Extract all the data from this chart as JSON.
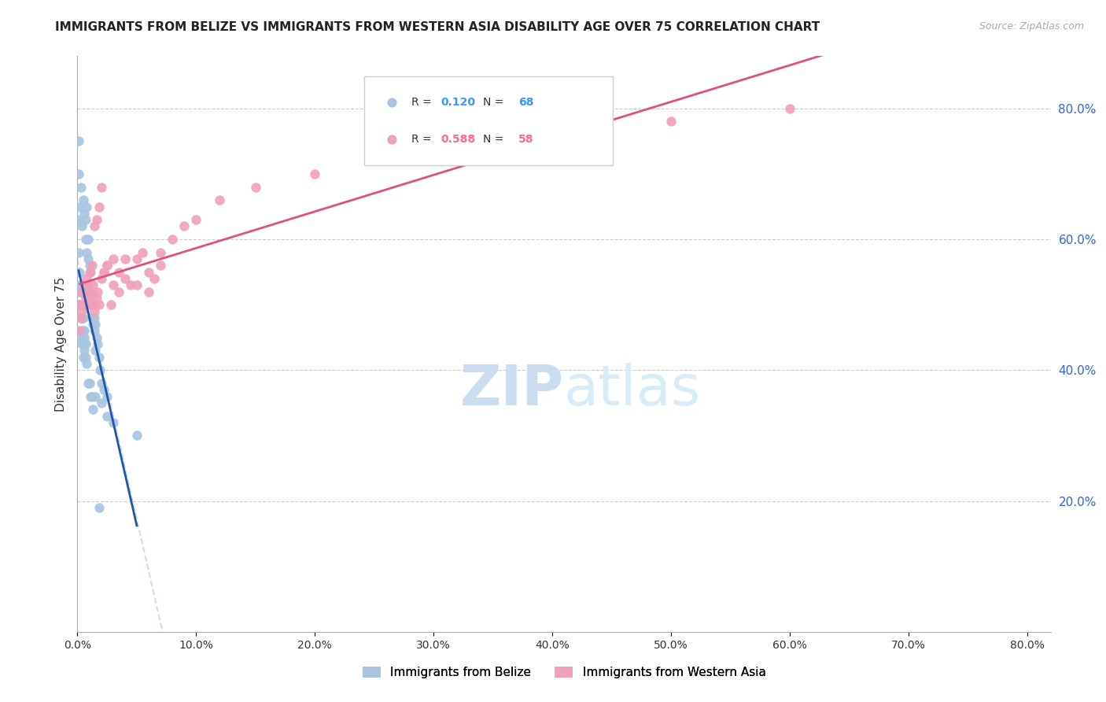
{
  "title": "IMMIGRANTS FROM BELIZE VS IMMIGRANTS FROM WESTERN ASIA DISABILITY AGE OVER 75 CORRELATION CHART",
  "source": "Source: ZipAtlas.com",
  "ylabel": "Disability Age Over 75",
  "R_belize": 0.12,
  "N_belize": 68,
  "R_western_asia": 0.588,
  "N_western_asia": 58,
  "belize_color": "#a8c4e0",
  "western_asia_color": "#f0a0b8",
  "belize_line_color": "#2255aa",
  "western_asia_line_color": "#e0507a",
  "legend_R_color_belize": "#3399ff",
  "legend_R_color_western": "#ff6699",
  "watermark_color": "#d0e4f7",
  "belize_scatter_x": [
    0.002,
    0.003,
    0.004,
    0.005,
    0.006,
    0.007,
    0.007,
    0.008,
    0.008,
    0.009,
    0.009,
    0.01,
    0.01,
    0.011,
    0.011,
    0.012,
    0.012,
    0.013,
    0.013,
    0.014,
    0.014,
    0.015,
    0.015,
    0.016,
    0.017,
    0.018,
    0.019,
    0.02,
    0.022,
    0.025,
    0.001,
    0.001,
    0.001,
    0.001,
    0.001,
    0.002,
    0.002,
    0.002,
    0.002,
    0.002,
    0.003,
    0.003,
    0.003,
    0.003,
    0.004,
    0.004,
    0.004,
    0.005,
    0.005,
    0.005,
    0.005,
    0.006,
    0.006,
    0.006,
    0.007,
    0.007,
    0.008,
    0.009,
    0.01,
    0.011,
    0.012,
    0.013,
    0.015,
    0.018,
    0.02,
    0.025,
    0.03,
    0.05
  ],
  "belize_scatter_y": [
    0.5,
    0.68,
    0.62,
    0.66,
    0.64,
    0.63,
    0.6,
    0.65,
    0.58,
    0.6,
    0.57,
    0.56,
    0.52,
    0.55,
    0.5,
    0.5,
    0.48,
    0.47,
    0.52,
    0.48,
    0.46,
    0.47,
    0.43,
    0.45,
    0.44,
    0.42,
    0.4,
    0.38,
    0.37,
    0.36,
    0.75,
    0.7,
    0.65,
    0.63,
    0.58,
    0.55,
    0.53,
    0.52,
    0.5,
    0.5,
    0.5,
    0.5,
    0.48,
    0.45,
    0.48,
    0.46,
    0.44,
    0.48,
    0.46,
    0.44,
    0.42,
    0.46,
    0.45,
    0.43,
    0.44,
    0.42,
    0.41,
    0.38,
    0.38,
    0.36,
    0.36,
    0.34,
    0.36,
    0.19,
    0.35,
    0.33,
    0.32,
    0.3
  ],
  "western_asia_scatter_x": [
    0.002,
    0.004,
    0.006,
    0.008,
    0.01,
    0.012,
    0.014,
    0.016,
    0.018,
    0.02,
    0.022,
    0.025,
    0.03,
    0.035,
    0.04,
    0.045,
    0.05,
    0.055,
    0.06,
    0.065,
    0.07,
    0.002,
    0.003,
    0.004,
    0.005,
    0.006,
    0.007,
    0.008,
    0.009,
    0.01,
    0.011,
    0.012,
    0.013,
    0.014,
    0.015,
    0.016,
    0.017,
    0.018,
    0.02,
    0.022,
    0.025,
    0.028,
    0.03,
    0.035,
    0.04,
    0.05,
    0.06,
    0.07,
    0.08,
    0.09,
    0.1,
    0.12,
    0.15,
    0.2,
    0.25,
    0.35,
    0.5,
    0.6
  ],
  "western_asia_scatter_y": [
    0.5,
    0.52,
    0.53,
    0.54,
    0.55,
    0.56,
    0.62,
    0.63,
    0.65,
    0.68,
    0.55,
    0.56,
    0.57,
    0.55,
    0.57,
    0.53,
    0.57,
    0.58,
    0.52,
    0.54,
    0.56,
    0.46,
    0.48,
    0.49,
    0.5,
    0.5,
    0.51,
    0.52,
    0.53,
    0.5,
    0.51,
    0.52,
    0.53,
    0.49,
    0.5,
    0.51,
    0.52,
    0.5,
    0.54,
    0.55,
    0.56,
    0.5,
    0.53,
    0.52,
    0.54,
    0.53,
    0.55,
    0.58,
    0.6,
    0.62,
    0.63,
    0.66,
    0.68,
    0.7,
    0.72,
    0.75,
    0.78,
    0.8
  ],
  "xlim": [
    0.0,
    0.82
  ],
  "ylim": [
    0.0,
    0.88
  ],
  "xticks": [
    0.0,
    0.1,
    0.2,
    0.3,
    0.4,
    0.5,
    0.6,
    0.7,
    0.8
  ],
  "yticks_right": [
    0.2,
    0.4,
    0.6,
    0.8
  ],
  "ytick_labels_right": [
    "20.0%",
    "40.0%",
    "60.0%",
    "80.0%"
  ],
  "xtick_labels": [
    "0.0%",
    "10.0%",
    "20.0%",
    "30.0%",
    "40.0%",
    "50.0%",
    "60.0%",
    "70.0%",
    "80.0%"
  ]
}
